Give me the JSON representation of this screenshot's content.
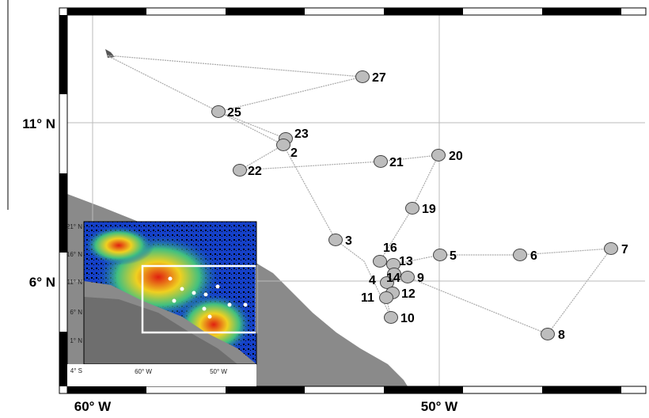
{
  "map": {
    "lon_labels": [
      "60° W",
      "50° W"
    ],
    "lat_labels": [
      "11° N",
      "6° N"
    ],
    "stations": [
      "27",
      "25",
      "23",
      "2",
      "22",
      "21",
      "20",
      "19",
      "3",
      "16",
      "13",
      "5",
      "6",
      "7",
      "4",
      "14",
      "9",
      "12",
      "11",
      "10",
      "8"
    ],
    "inset": {
      "lat_labels": [
        "21° N",
        "16° N",
        "11° N",
        "6° N",
        "1° N",
        "4° S"
      ],
      "lon_labels": [
        "60° W",
        "50° W"
      ]
    }
  }
}
